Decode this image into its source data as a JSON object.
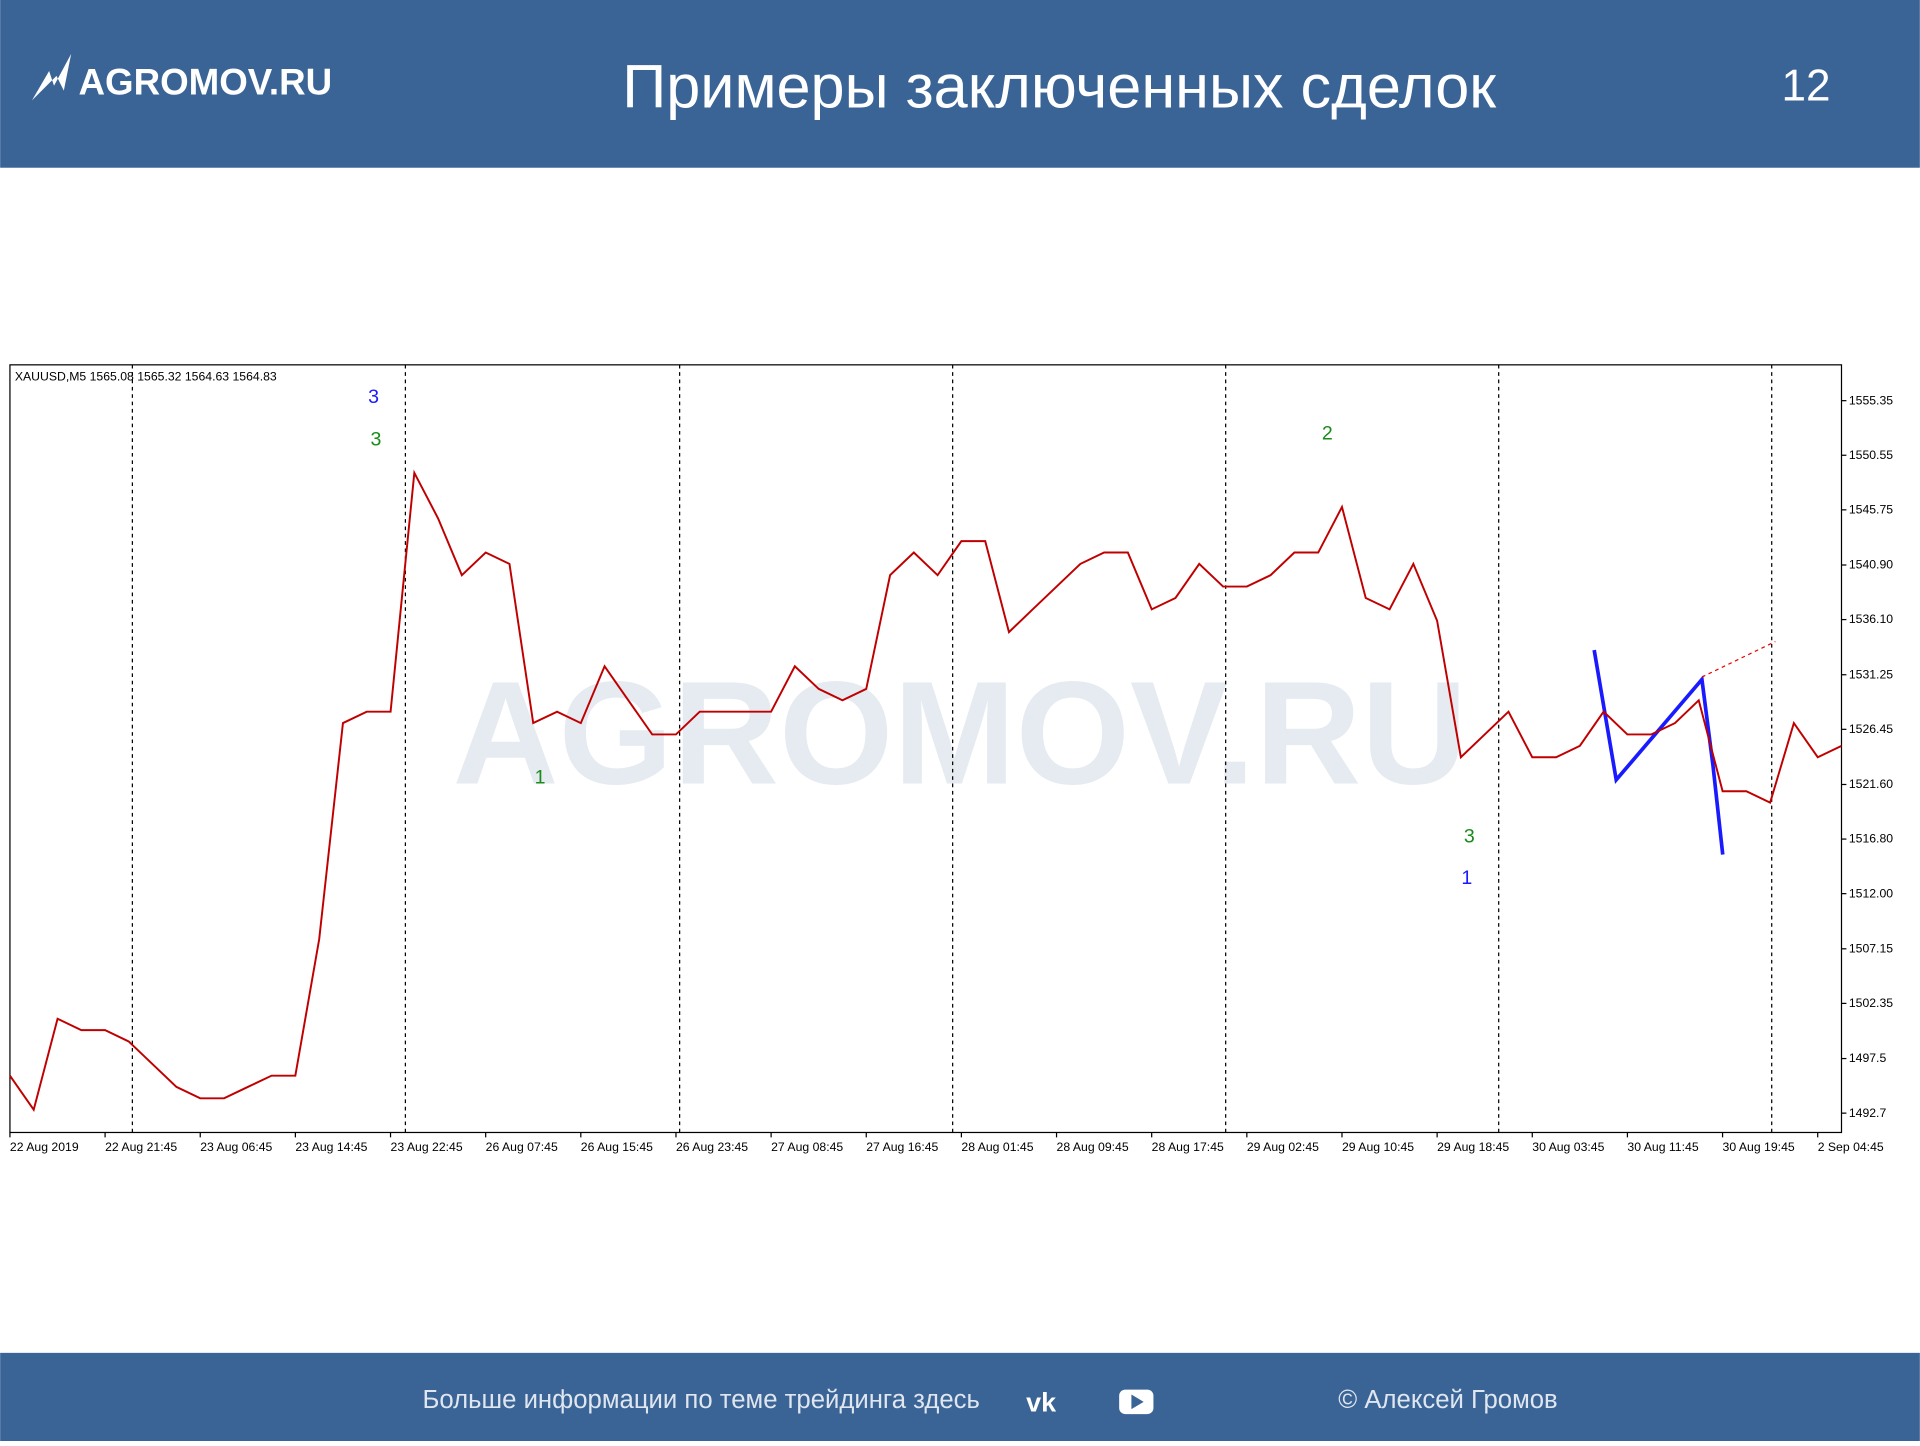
{
  "header": {
    "logo": "AGROMOV.RU",
    "title": "Примеры заключенных сделок",
    "page": "12"
  },
  "footer": {
    "text": "Больше информации по теме трейдинга здесь",
    "copyright": "© Алексей Громов"
  },
  "chart_data": {
    "type": "line",
    "title": "XAUUSD,M5  1565.08 1565.32 1564.63 1564.83",
    "watermark": "AGROMOV.RU",
    "annotations": [
      "3",
      "3",
      "1",
      "2",
      "3",
      "1"
    ],
    "categories": [
      "22 Aug 2019",
      null,
      null,
      null,
      "22 Aug 21:45",
      null,
      null,
      null,
      "23 Aug 06:45",
      null,
      null,
      null,
      "23 Aug 14:45",
      null,
      null,
      null,
      "23 Aug 22:45",
      null,
      null,
      null,
      "26 Aug 07:45",
      null,
      null,
      null,
      "26 Aug 15:45",
      null,
      null,
      null,
      "26 Aug 23:45",
      null,
      null,
      null,
      "27 Aug 08:45",
      null,
      null,
      null,
      "27 Aug 16:45",
      null,
      null,
      null,
      "28 Aug 01:45",
      null,
      null,
      null,
      "28 Aug 09:45",
      null,
      null,
      null,
      "28 Aug 17:45",
      null,
      null,
      null,
      "29 Aug 02:45",
      null,
      null,
      null,
      "29 Aug 10:45",
      null,
      null,
      null,
      "29 Aug 18:45",
      null,
      null,
      null,
      "30 Aug 03:45",
      null,
      null,
      null,
      "30 Aug 11:45",
      null,
      null,
      null,
      "30 Aug 19:45",
      null,
      null,
      null,
      "2 Sep 04:45",
      null
    ],
    "series": [
      {
        "color": "#c00000",
        "values": [
          1496,
          1493,
          1501,
          1500,
          1500,
          1499,
          1497,
          1495,
          1494,
          1494,
          1495,
          1496,
          1496,
          1508,
          1527,
          1528,
          1528,
          1549,
          1545,
          1540,
          1542,
          1541,
          1527,
          1528,
          1527,
          1532,
          1529,
          1526,
          1526,
          1528,
          1528,
          1528,
          1528,
          1532,
          1530,
          1529,
          1530,
          1540,
          1542,
          1540,
          1543,
          1543,
          1535,
          1537,
          1539,
          1541,
          1542,
          1542,
          1537,
          1538,
          1541,
          1539,
          1539,
          1540,
          1542,
          1542,
          1546,
          1538,
          1537,
          1541,
          1536,
          1524,
          1526,
          1528,
          1524,
          1524,
          1525,
          1528,
          1526,
          1526,
          1527,
          1529,
          1521,
          1521,
          1520,
          1527,
          1524,
          1525
        ]
      }
    ],
    "ylim": [
      1491,
      1558.5
    ],
    "yticks": [
      1555.35,
      1550.55,
      1545.75,
      {
        "value": 1540.9,
        "label": "1540.90"
      },
      {
        "value": 1536.1,
        "label": "1536.10"
      },
      1531.25,
      1526.45,
      {
        "value": 1521.6,
        "label": "1521.60"
      },
      {
        "value": 1516.8,
        "label": "1516.80"
      },
      {
        "value": 1512,
        "label": "1512.00"
      },
      1507.15,
      1502.35,
      1497.5,
      1492.7
    ]
  }
}
